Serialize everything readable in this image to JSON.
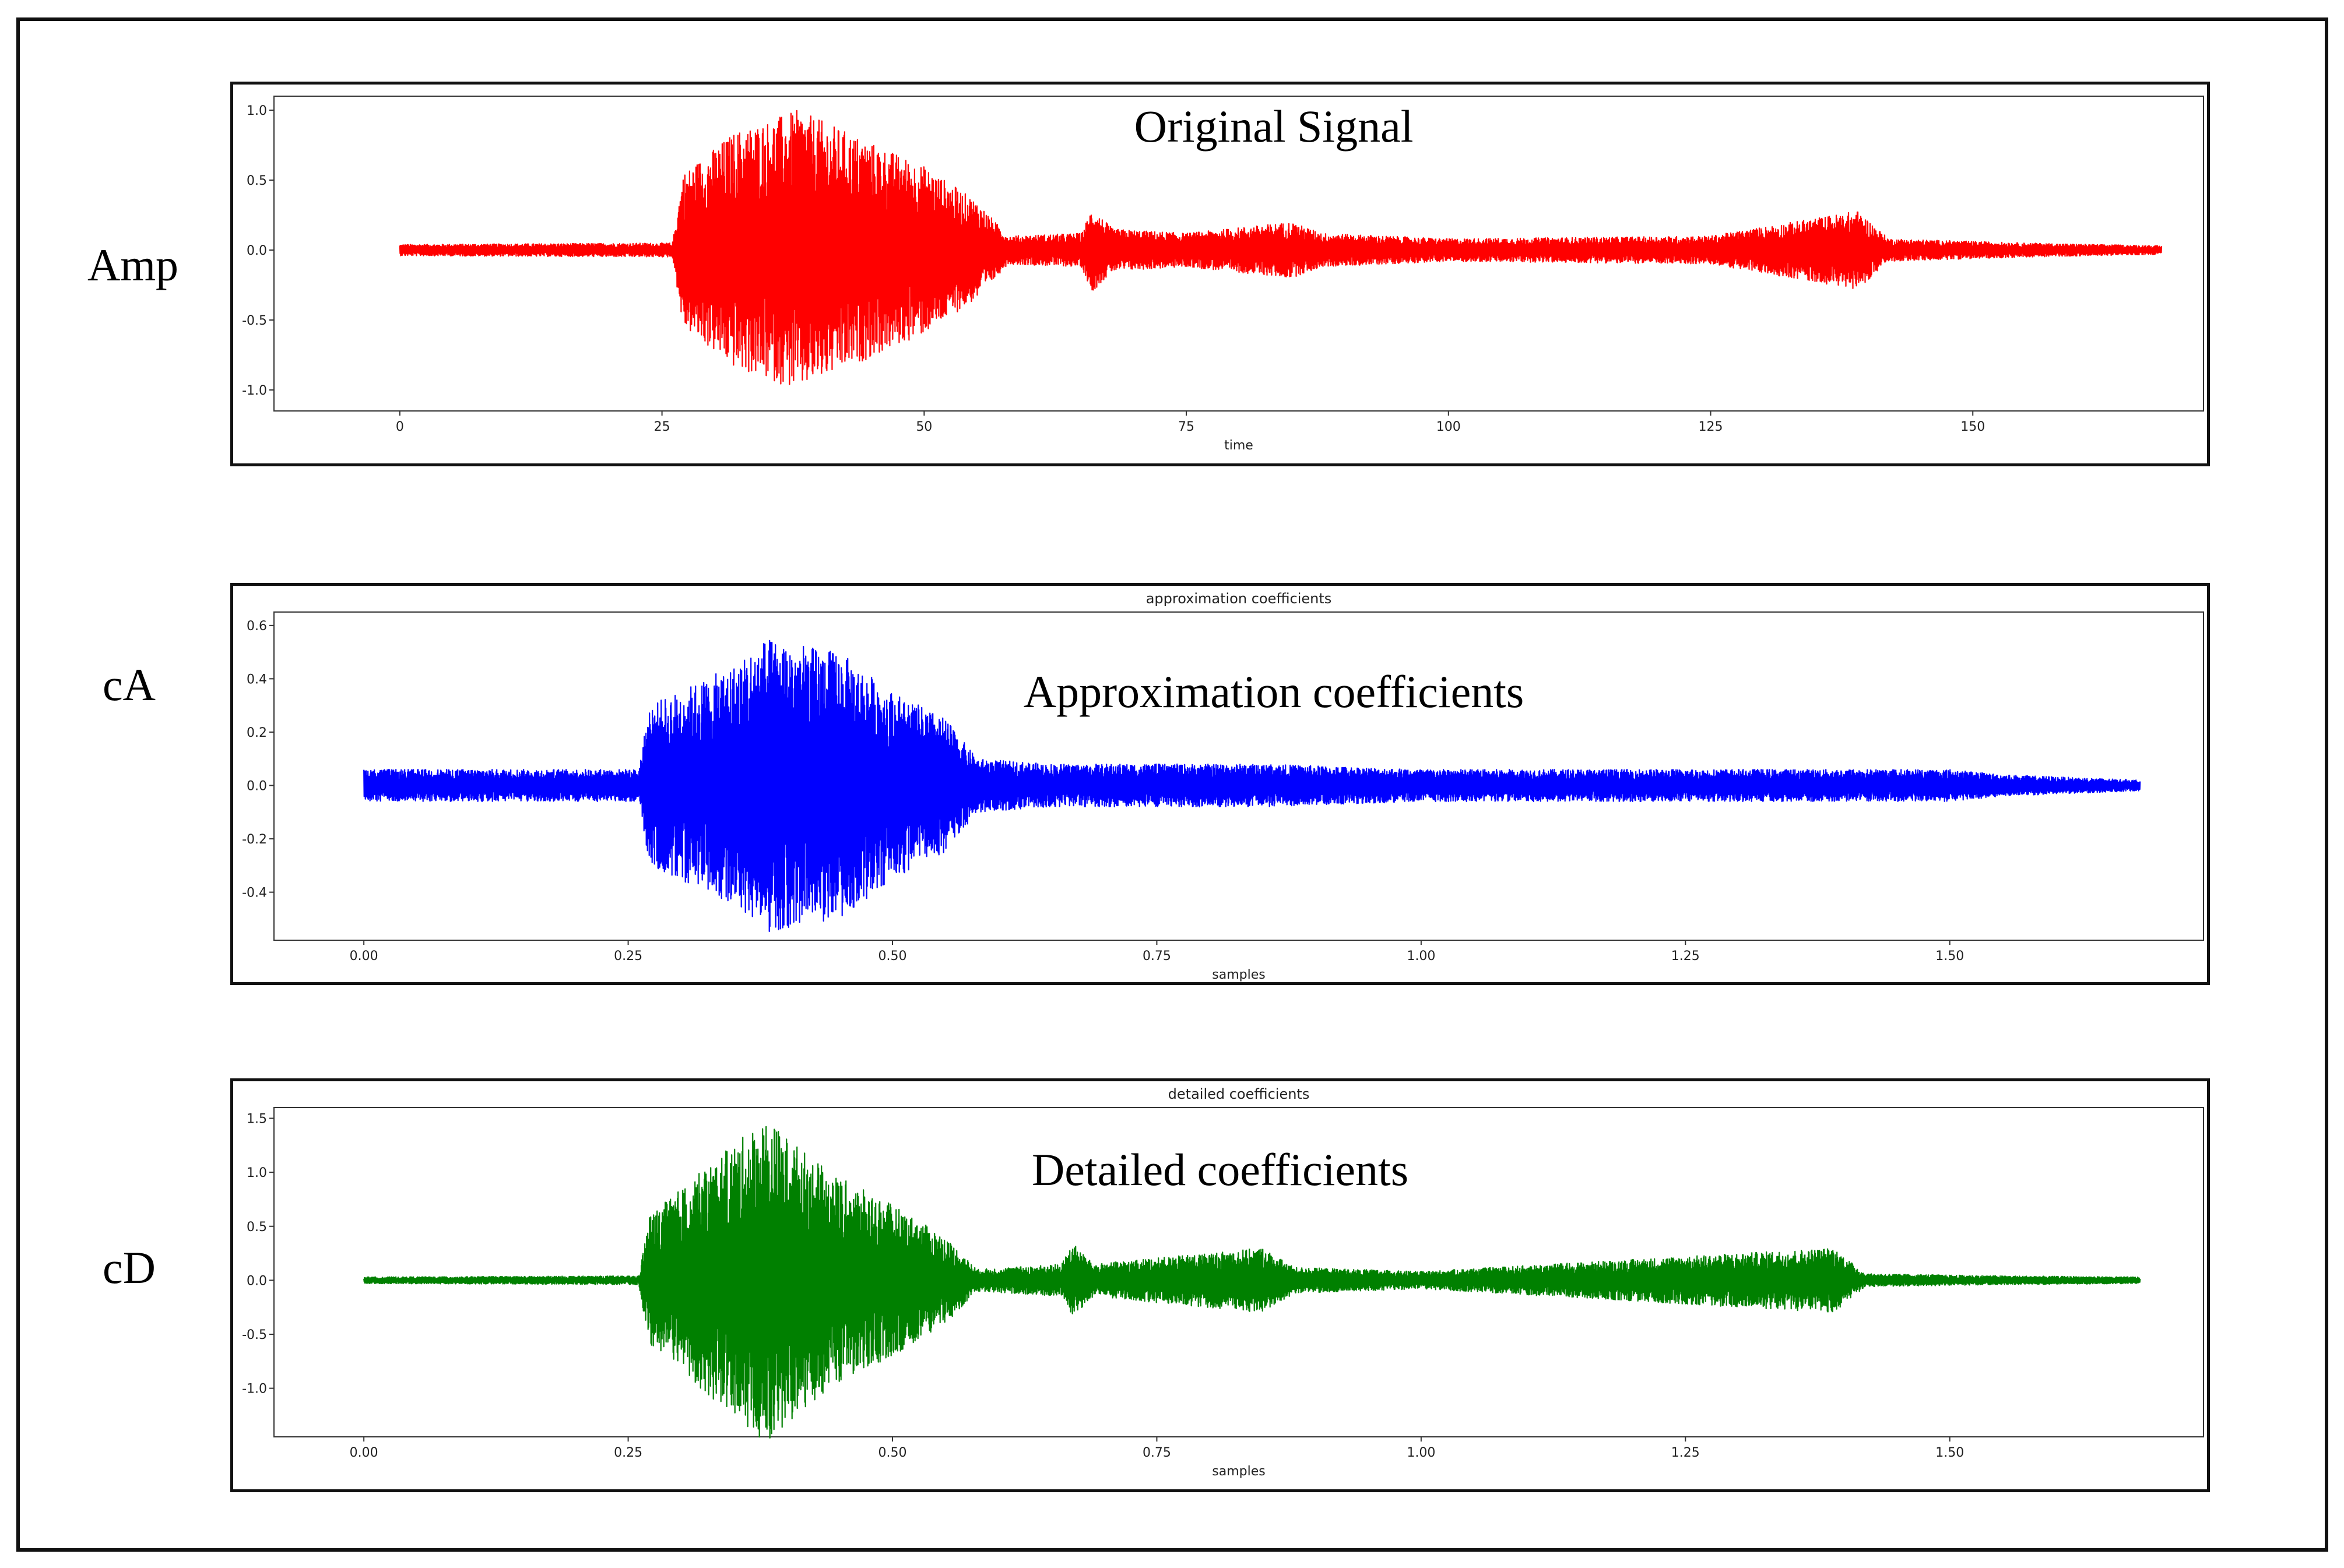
{
  "chart_data": [
    {
      "type": "line",
      "row_label": "Amp",
      "overlay_label": "Original Signal",
      "title": "",
      "xlabel": "time",
      "ylabel": "",
      "xlim": [
        -12,
        172
      ],
      "ylim": [
        -1.15,
        1.1
      ],
      "xticks": [
        0,
        25,
        50,
        75,
        100,
        125,
        150
      ],
      "xtick_labels": [
        "0",
        "25",
        "50",
        "75",
        "100",
        "125",
        "150"
      ],
      "yticks": [
        -1.0,
        -0.5,
        0.0,
        0.5,
        1.0
      ],
      "ytick_labels": [
        "-1.0",
        "-0.5",
        "0.0",
        "0.5",
        "1.0"
      ],
      "series": [
        {
          "color": "#ff0000",
          "x_range": [
            0,
            168
          ],
          "envelope": [
            [
              0,
              0.04
            ],
            [
              26,
              0.05
            ],
            [
              27,
              0.55
            ],
            [
              32,
              0.85
            ],
            [
              38,
              1.0
            ],
            [
              44,
              0.8
            ],
            [
              50,
              0.6
            ],
            [
              55,
              0.35
            ],
            [
              58,
              0.1
            ],
            [
              65,
              0.12
            ],
            [
              66,
              0.3
            ],
            [
              68,
              0.15
            ],
            [
              75,
              0.12
            ],
            [
              85,
              0.2
            ],
            [
              88,
              0.12
            ],
            [
              100,
              0.08
            ],
            [
              125,
              0.1
            ],
            [
              139,
              0.28
            ],
            [
              142,
              0.08
            ],
            [
              155,
              0.05
            ],
            [
              168,
              0.03
            ]
          ]
        }
      ]
    },
    {
      "type": "line",
      "row_label": "cA",
      "overlay_label": "Approximation coefficients",
      "title": "approximation coefficients",
      "xlabel": "samples",
      "ylabel": "",
      "xlim": [
        -0.085,
        1.74
      ],
      "ylim": [
        -0.58,
        0.65
      ],
      "xticks": [
        0.0,
        0.25,
        0.5,
        0.75,
        1.0,
        1.25,
        1.5
      ],
      "xtick_labels": [
        "0.00",
        "0.25",
        "0.50",
        "0.75",
        "1.00",
        "1.25",
        "1.50"
      ],
      "yticks": [
        -0.4,
        -0.2,
        0.0,
        0.2,
        0.4,
        0.6
      ],
      "ytick_labels": [
        "-0.4",
        "-0.2",
        "0.0",
        "0.2",
        "0.4",
        "0.6"
      ],
      "series": [
        {
          "color": "#0000ff",
          "x_range": [
            0,
            1.68
          ],
          "envelope": [
            [
              0,
              0.06
            ],
            [
              0.26,
              0.06
            ],
            [
              0.27,
              0.3
            ],
            [
              0.35,
              0.45
            ],
            [
              0.38,
              0.55
            ],
            [
              0.45,
              0.5
            ],
            [
              0.5,
              0.35
            ],
            [
              0.55,
              0.25
            ],
            [
              0.58,
              0.1
            ],
            [
              0.65,
              0.08
            ],
            [
              0.85,
              0.08
            ],
            [
              1.0,
              0.06
            ],
            [
              1.5,
              0.06
            ],
            [
              1.55,
              0.04
            ],
            [
              1.68,
              0.02
            ]
          ]
        }
      ]
    },
    {
      "type": "line",
      "row_label": "cD",
      "overlay_label": "Detailed coefficients",
      "title": "detailed coefficients",
      "xlabel": "samples",
      "ylabel": "",
      "xlim": [
        -0.085,
        1.74
      ],
      "ylim": [
        -1.45,
        1.6
      ],
      "xticks": [
        0.0,
        0.25,
        0.5,
        0.75,
        1.0,
        1.25,
        1.5
      ],
      "xtick_labels": [
        "0.00",
        "0.25",
        "0.50",
        "0.75",
        "1.00",
        "1.25",
        "1.50"
      ],
      "yticks": [
        -1.0,
        -0.5,
        0.0,
        0.5,
        1.0,
        1.5
      ],
      "ytick_labels": [
        "-1.0",
        "-0.5",
        "0.0",
        "0.5",
        "1.0",
        "1.5"
      ],
      "series": [
        {
          "color": "#008000",
          "x_range": [
            0,
            1.68
          ],
          "envelope": [
            [
              0,
              0.03
            ],
            [
              0.26,
              0.04
            ],
            [
              0.27,
              0.6
            ],
            [
              0.33,
              1.1
            ],
            [
              0.38,
              1.5
            ],
            [
              0.44,
              1.0
            ],
            [
              0.5,
              0.7
            ],
            [
              0.55,
              0.4
            ],
            [
              0.58,
              0.1
            ],
            [
              0.66,
              0.15
            ],
            [
              0.67,
              0.35
            ],
            [
              0.69,
              0.15
            ],
            [
              0.85,
              0.3
            ],
            [
              0.88,
              0.12
            ],
            [
              1.0,
              0.08
            ],
            [
              1.39,
              0.3
            ],
            [
              1.42,
              0.06
            ],
            [
              1.55,
              0.04
            ],
            [
              1.68,
              0.03
            ]
          ]
        }
      ]
    }
  ]
}
